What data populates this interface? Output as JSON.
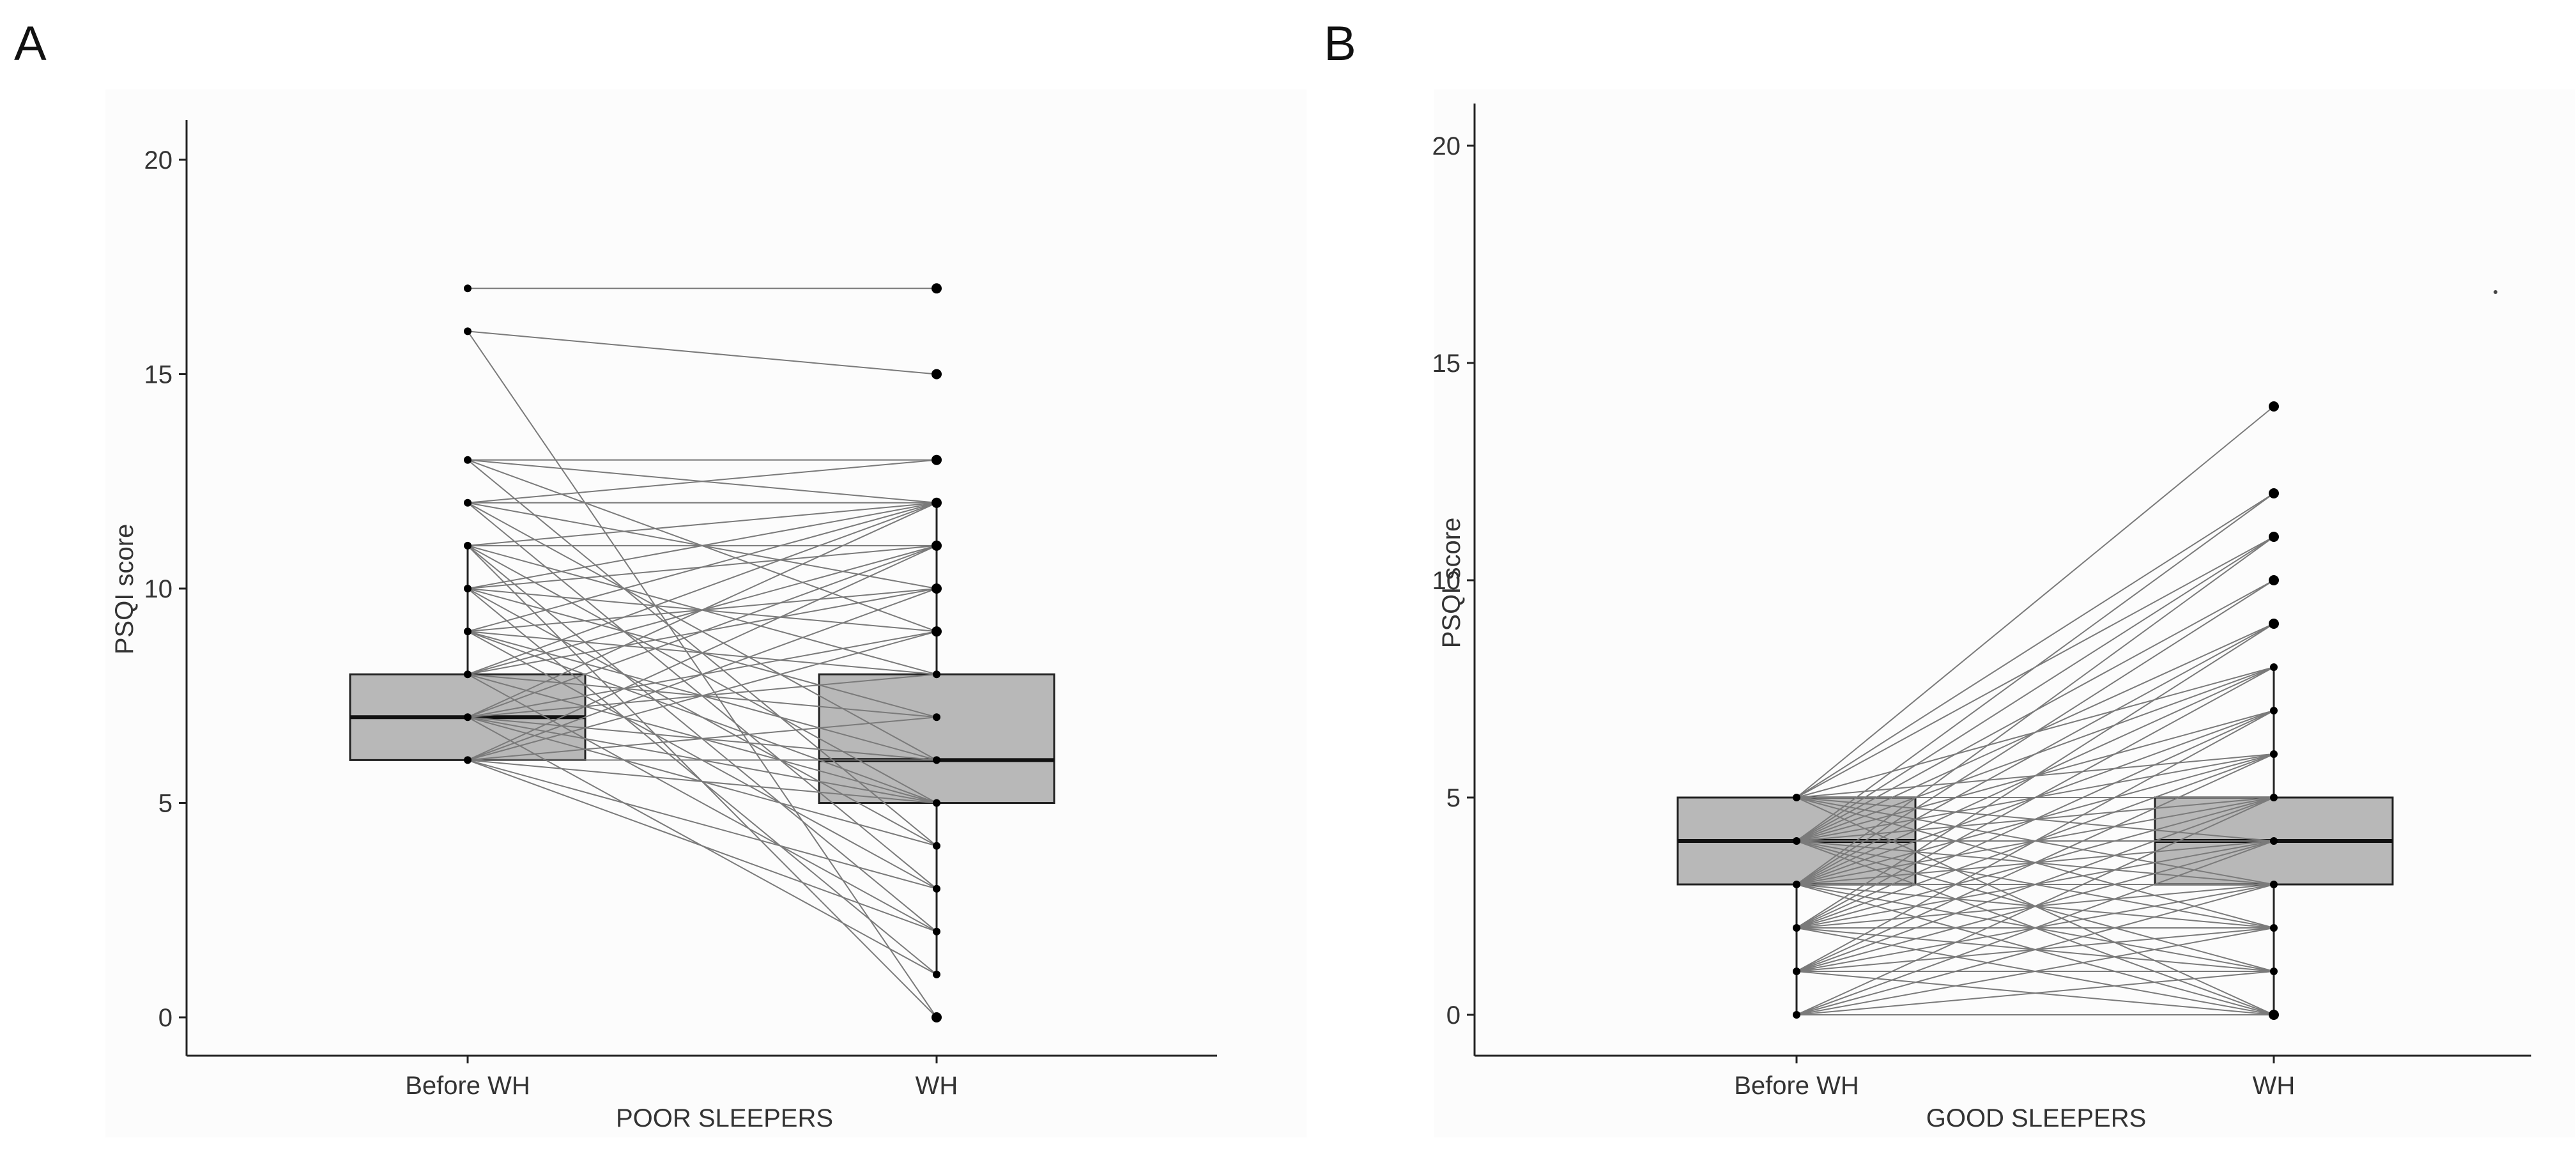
{
  "chart_data": [
    {
      "type": "boxplot-paired",
      "panel_label": "A",
      "title": "",
      "xlabel": "POOR SLEEPERS",
      "ylabel": "PSQI score",
      "categories": [
        "Before WH",
        "WH"
      ],
      "ylim": [
        0,
        20
      ],
      "yticks": [
        0,
        5,
        10,
        15,
        20
      ],
      "grid": false,
      "boxes": [
        {
          "name": "Before WH",
          "q1": 6,
          "median": 7,
          "q3": 8,
          "whisker_low": 6,
          "whisker_high": 11
        },
        {
          "name": "WH",
          "q1": 5,
          "median": 6,
          "q3": 8,
          "whisker_low": 1,
          "whisker_high": 12
        }
      ],
      "before_values": [
        6,
        7,
        8,
        9,
        10,
        11,
        12,
        13,
        16,
        17
      ],
      "after_values": [
        0,
        1,
        2,
        3,
        4,
        5,
        6,
        7,
        8,
        9,
        10,
        11,
        12,
        13,
        15,
        17
      ],
      "pairs": [
        [
          17,
          17
        ],
        [
          16,
          15
        ],
        [
          16,
          0
        ],
        [
          13,
          13
        ],
        [
          13,
          12
        ],
        [
          13,
          9
        ],
        [
          13,
          4
        ],
        [
          12,
          13
        ],
        [
          12,
          12
        ],
        [
          12,
          10
        ],
        [
          12,
          6
        ],
        [
          12,
          3
        ],
        [
          11,
          12
        ],
        [
          11,
          11
        ],
        [
          11,
          8
        ],
        [
          11,
          5
        ],
        [
          11,
          2
        ],
        [
          11,
          0
        ],
        [
          10,
          12
        ],
        [
          10,
          11
        ],
        [
          10,
          9
        ],
        [
          10,
          7
        ],
        [
          10,
          4
        ],
        [
          10,
          1
        ],
        [
          9,
          12
        ],
        [
          9,
          10
        ],
        [
          9,
          8
        ],
        [
          9,
          6
        ],
        [
          9,
          5
        ],
        [
          9,
          3
        ],
        [
          8,
          12
        ],
        [
          8,
          11
        ],
        [
          8,
          10
        ],
        [
          8,
          7
        ],
        [
          8,
          5
        ],
        [
          8,
          2
        ],
        [
          7,
          12
        ],
        [
          7,
          11
        ],
        [
          7,
          9
        ],
        [
          7,
          8
        ],
        [
          7,
          6
        ],
        [
          7,
          5
        ],
        [
          7,
          4
        ],
        [
          7,
          1
        ],
        [
          6,
          11
        ],
        [
          6,
          10
        ],
        [
          6,
          9
        ],
        [
          6,
          7
        ],
        [
          6,
          6
        ],
        [
          6,
          5
        ],
        [
          6,
          3
        ],
        [
          6,
          2
        ]
      ]
    },
    {
      "type": "boxplot-paired",
      "panel_label": "B",
      "title": "",
      "xlabel": "GOOD SLEEPERS",
      "ylabel": "PSQI score",
      "categories": [
        "Before WH",
        "WH"
      ],
      "ylim": [
        0,
        20
      ],
      "yticks": [
        0,
        5,
        10,
        15,
        20
      ],
      "grid": false,
      "boxes": [
        {
          "name": "Before WH",
          "q1": 3,
          "median": 4,
          "q3": 5,
          "whisker_low": 0,
          "whisker_high": 5
        },
        {
          "name": "WH",
          "q1": 3,
          "median": 4,
          "q3": 5,
          "whisker_low": 0,
          "whisker_high": 8
        }
      ],
      "before_values": [
        0,
        1,
        2,
        3,
        4,
        5
      ],
      "after_values": [
        0,
        1,
        2,
        3,
        4,
        5,
        6,
        7,
        8,
        9,
        10,
        11,
        12,
        14
      ],
      "pairs": [
        [
          5,
          14
        ],
        [
          5,
          12
        ],
        [
          5,
          11
        ],
        [
          5,
          8
        ],
        [
          5,
          6
        ],
        [
          5,
          5
        ],
        [
          5,
          4
        ],
        [
          5,
          3
        ],
        [
          5,
          2
        ],
        [
          5,
          0
        ],
        [
          4,
          12
        ],
        [
          4,
          11
        ],
        [
          4,
          10
        ],
        [
          4,
          9
        ],
        [
          4,
          8
        ],
        [
          4,
          7
        ],
        [
          4,
          6
        ],
        [
          4,
          5
        ],
        [
          4,
          4
        ],
        [
          4,
          3
        ],
        [
          4,
          2
        ],
        [
          4,
          1
        ],
        [
          4,
          0
        ],
        [
          3,
          11
        ],
        [
          3,
          10
        ],
        [
          3,
          9
        ],
        [
          3,
          8
        ],
        [
          3,
          7
        ],
        [
          3,
          6
        ],
        [
          3,
          5
        ],
        [
          3,
          4
        ],
        [
          3,
          3
        ],
        [
          3,
          2
        ],
        [
          3,
          1
        ],
        [
          3,
          0
        ],
        [
          2,
          9
        ],
        [
          2,
          8
        ],
        [
          2,
          7
        ],
        [
          2,
          6
        ],
        [
          2,
          5
        ],
        [
          2,
          4
        ],
        [
          2,
          3
        ],
        [
          2,
          2
        ],
        [
          2,
          1
        ],
        [
          2,
          0
        ],
        [
          1,
          7
        ],
        [
          1,
          6
        ],
        [
          1,
          5
        ],
        [
          1,
          4
        ],
        [
          1,
          3
        ],
        [
          1,
          2
        ],
        [
          1,
          1
        ],
        [
          1,
          0
        ],
        [
          0,
          5
        ],
        [
          0,
          4
        ],
        [
          0,
          3
        ],
        [
          0,
          2
        ],
        [
          0,
          1
        ],
        [
          0,
          0
        ]
      ]
    }
  ]
}
